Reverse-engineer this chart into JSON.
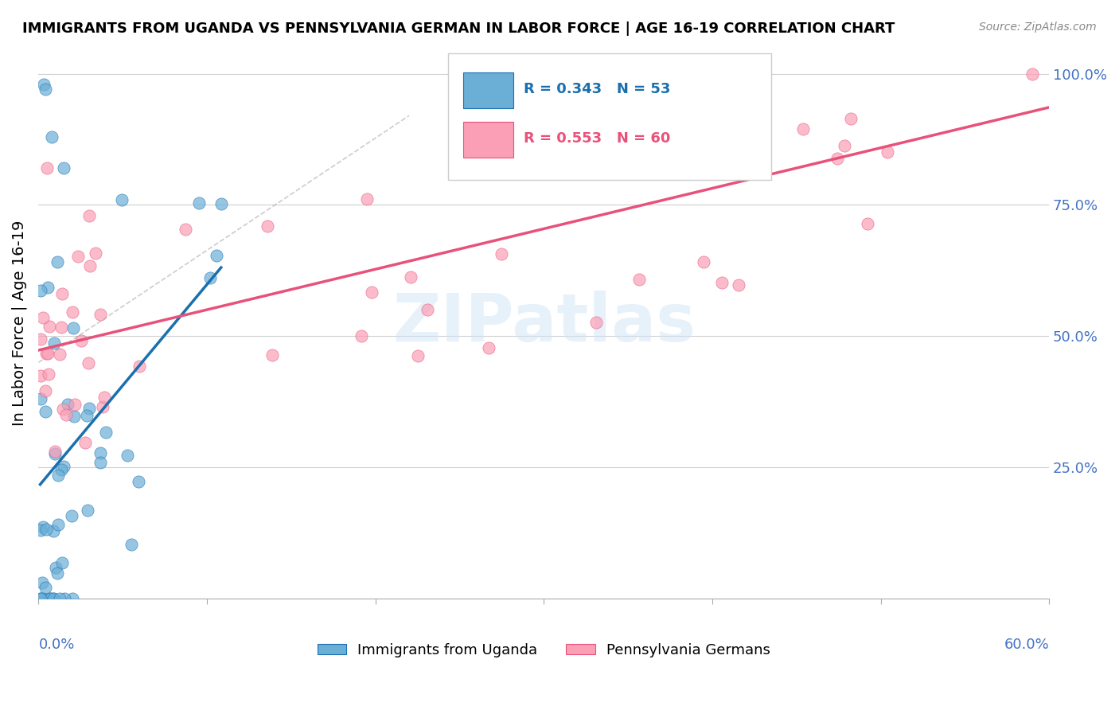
{
  "title": "IMMIGRANTS FROM UGANDA VS PENNSYLVANIA GERMAN IN LABOR FORCE | AGE 16-19 CORRELATION CHART",
  "source": "Source: ZipAtlas.com",
  "ylabel": "In Labor Force | Age 16-19",
  "xlim": [
    0.0,
    0.6
  ],
  "ylim": [
    0.0,
    1.05
  ],
  "legend1_R": "0.343",
  "legend1_N": "53",
  "legend2_R": "0.553",
  "legend2_N": "60",
  "color_uganda": "#6baed6",
  "color_penn": "#fa9fb5",
  "color_line_uganda": "#1a6faf",
  "color_line_penn": "#e8527a",
  "color_grid": "#d0d0d0",
  "watermark": "ZIPatlas"
}
